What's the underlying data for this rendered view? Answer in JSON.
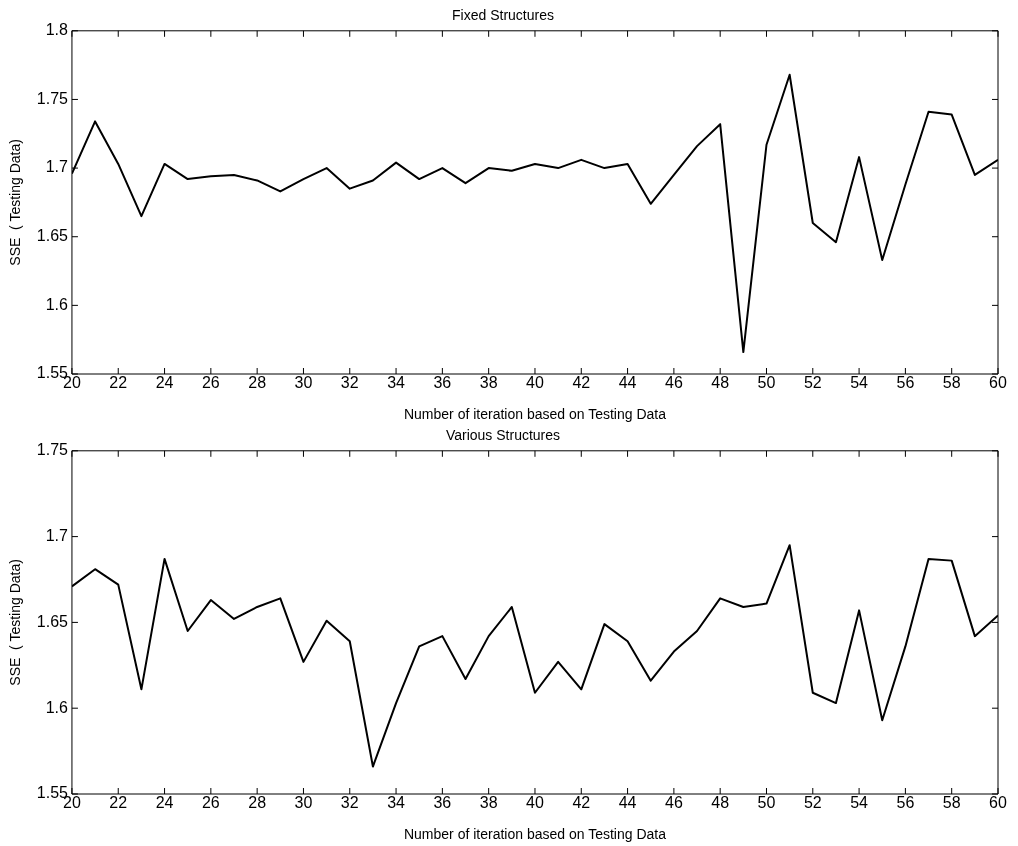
{
  "chart_data": [
    {
      "type": "line",
      "title": "Fixed Structures",
      "xlabel": "Number of iteration based on Testing Data",
      "ylabel": "SSE  ( Testing Data)",
      "grid": false,
      "xlim": [
        20,
        60
      ],
      "ylim": [
        1.55,
        1.8
      ],
      "xticks": [
        20,
        22,
        24,
        26,
        28,
        30,
        32,
        34,
        36,
        38,
        40,
        42,
        44,
        46,
        48,
        50,
        52,
        54,
        56,
        58,
        60
      ],
      "yticks": [
        1.55,
        1.6,
        1.65,
        1.7,
        1.75,
        1.8
      ],
      "x": [
        20,
        21,
        22,
        23,
        24,
        25,
        26,
        27,
        28,
        29,
        30,
        31,
        32,
        33,
        34,
        35,
        36,
        37,
        38,
        39,
        40,
        41,
        42,
        43,
        44,
        45,
        46,
        47,
        48,
        49,
        50,
        51,
        52,
        53,
        54,
        55,
        56,
        57,
        58,
        59,
        60
      ],
      "series": [
        {
          "color": "#000000",
          "values": [
            1.696,
            1.734,
            1.703,
            1.665,
            1.703,
            1.692,
            1.694,
            1.695,
            1.691,
            1.683,
            1.692,
            1.7,
            1.685,
            1.691,
            1.704,
            1.692,
            1.7,
            1.689,
            1.7,
            1.698,
            1.703,
            1.7,
            1.706,
            1.7,
            1.703,
            1.674,
            1.695,
            1.716,
            1.732,
            1.566,
            1.717,
            1.768,
            1.66,
            1.646,
            1.708,
            1.633,
            1.688,
            1.741,
            1.739,
            1.695,
            1.706
          ]
        }
      ]
    },
    {
      "type": "line",
      "title": "Various Structures",
      "xlabel": "Number of iteration based on Testing Data",
      "ylabel": "SSE  ( Testing Data)",
      "grid": false,
      "xlim": [
        20,
        60
      ],
      "ylim": [
        1.55,
        1.75
      ],
      "xticks": [
        20,
        22,
        24,
        26,
        28,
        30,
        32,
        34,
        36,
        38,
        40,
        42,
        44,
        46,
        48,
        50,
        52,
        54,
        56,
        58,
        60
      ],
      "yticks": [
        1.55,
        1.6,
        1.65,
        1.7,
        1.75
      ],
      "x": [
        20,
        21,
        22,
        23,
        24,
        25,
        26,
        27,
        28,
        29,
        30,
        31,
        32,
        33,
        34,
        35,
        36,
        37,
        38,
        39,
        40,
        41,
        42,
        43,
        44,
        45,
        46,
        47,
        48,
        49,
        50,
        51,
        52,
        53,
        54,
        55,
        56,
        57,
        58,
        59,
        60
      ],
      "series": [
        {
          "color": "#000000",
          "values": [
            1.671,
            1.681,
            1.672,
            1.611,
            1.687,
            1.645,
            1.663,
            1.652,
            1.659,
            1.664,
            1.627,
            1.651,
            1.639,
            1.566,
            1.603,
            1.636,
            1.642,
            1.617,
            1.642,
            1.659,
            1.609,
            1.627,
            1.611,
            1.649,
            1.639,
            1.616,
            1.633,
            1.645,
            1.664,
            1.659,
            1.661,
            1.695,
            1.609,
            1.603,
            1.657,
            1.593,
            1.636,
            1.687,
            1.686,
            1.642,
            1.654
          ]
        }
      ]
    }
  ]
}
